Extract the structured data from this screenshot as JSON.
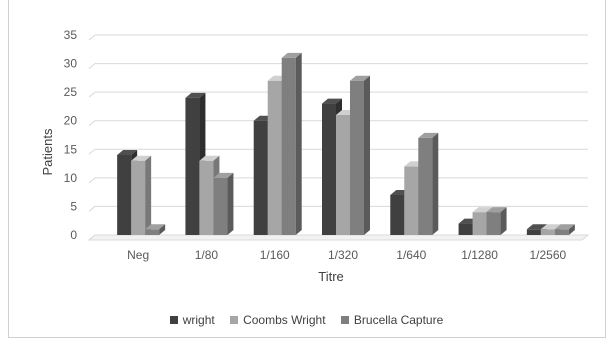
{
  "chart_data": {
    "type": "bar",
    "style": "3d-clustered-column",
    "title": "",
    "xlabel": "Titre",
    "ylabel": "Patients",
    "ylim": [
      0,
      35
    ],
    "yticks": [
      0,
      5,
      10,
      15,
      20,
      25,
      30,
      35
    ],
    "categories": [
      "Neg",
      "1/80",
      "1/160",
      "1/320",
      "1/640",
      "1/1280",
      "1/2560"
    ],
    "series": [
      {
        "name": "wright",
        "color": "#404040",
        "values": [
          14,
          24,
          20,
          23,
          7,
          2,
          1
        ]
      },
      {
        "name": "Coombs Wright",
        "color": "#a6a6a6",
        "values": [
          13,
          13,
          27,
          21,
          12,
          4,
          1
        ]
      },
      {
        "name": "Brucella Capture",
        "color": "#7f7f7f",
        "values": [
          1,
          10,
          31,
          27,
          17,
          4,
          1
        ]
      }
    ],
    "grid": true,
    "legend_position": "bottom"
  }
}
